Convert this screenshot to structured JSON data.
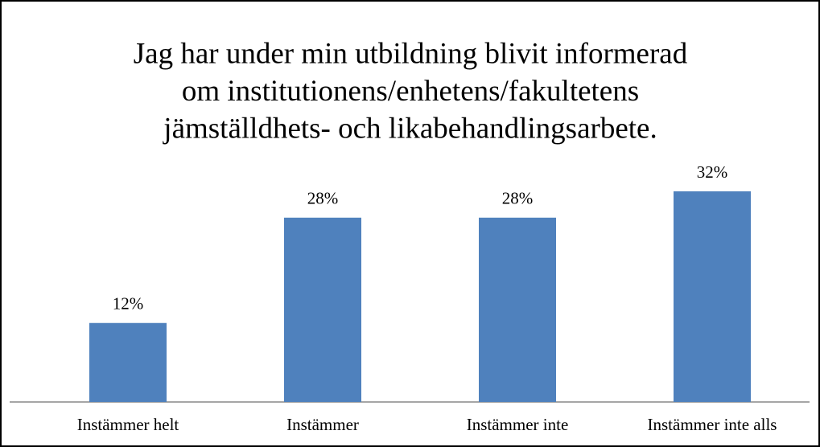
{
  "chart_data": {
    "type": "bar",
    "title": [
      "Jag har under min utbildning blivit informerad",
      "om institutionens/enhetens/fakultetens",
      "jämställdhets- och likabehandlingsarbete."
    ],
    "categories": [
      "Instämmer helt",
      "Instämmer",
      "Instämmer inte",
      "Instämmer inte alls"
    ],
    "values": [
      12,
      28,
      28,
      32
    ],
    "value_labels": [
      "12%",
      "28%",
      "28%",
      "32%"
    ],
    "color": "#4f81bd"
  }
}
